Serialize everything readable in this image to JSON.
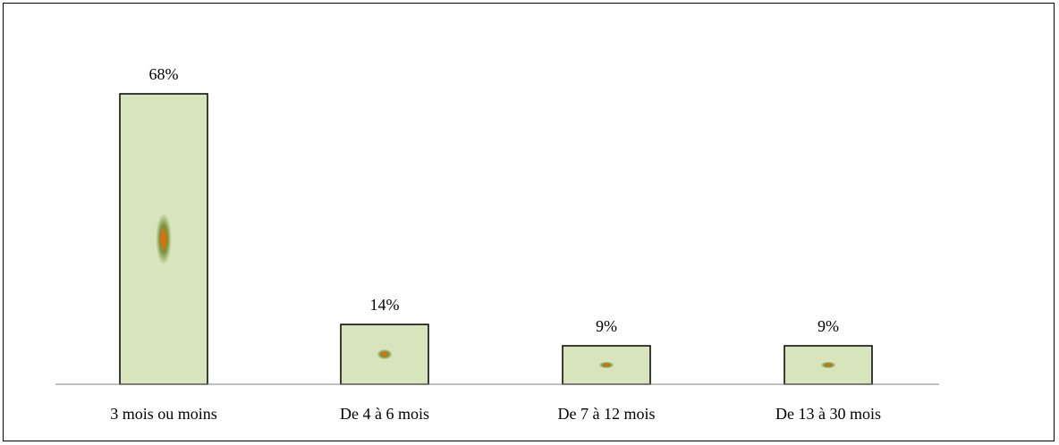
{
  "chart_data": {
    "type": "bar",
    "categories": [
      "3 mois ou moins",
      "De 4 à 6 mois",
      "De 7 à 12 mois",
      "De 13 à 30 mois"
    ],
    "values": [
      68,
      14,
      9,
      9
    ],
    "value_labels": [
      "68%",
      "14%",
      "9%",
      "9%"
    ],
    "title": "",
    "xlabel": "",
    "ylabel": "",
    "ylim": [
      0,
      68
    ],
    "grid": false,
    "legend": "none",
    "bar_fill_color": "#d8e4bc",
    "bar_center_color": "#e36c09",
    "bar_glow_color": "#77933c",
    "bar_outline_color": "#000000",
    "axis_color": "#808080"
  }
}
